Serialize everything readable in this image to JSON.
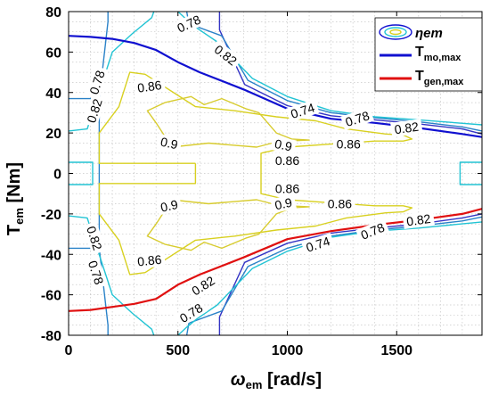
{
  "chart_data": {
    "type": "contour",
    "xlabel": {
      "main": "ω",
      "sub": "em",
      "rest": " [rad/s]"
    },
    "ylabel": {
      "main": "T",
      "sub": "em",
      "rest": " [Nm]"
    },
    "xlim": [
      0,
      1890
    ],
    "ylim": [
      -80,
      80
    ],
    "xticks": [
      "0",
      "500",
      "1000",
      "1500"
    ],
    "yticks": [
      "-80",
      "-60",
      "-40",
      "-20",
      "0",
      "20",
      "40",
      "60",
      "80"
    ],
    "grid": true,
    "legend": {
      "placement": "top-right",
      "entries": [
        {
          "main": "ηem",
          "sub": ""
        },
        {
          "main": "T",
          "sub": "mo,max"
        },
        {
          "main": "T",
          "sub": "gen,max"
        }
      ]
    },
    "colors": {
      "mo_max": "#1010d0",
      "gen_max": "#e01010",
      "c074": "#3434c4",
      "c078": "#2a82c8",
      "c082": "#22c4d4",
      "c086": "#d8d020",
      "c090": "#d8cc30"
    },
    "mo_max": [
      [
        0,
        68
      ],
      [
        100,
        67.5
      ],
      [
        200,
        66.5
      ],
      [
        300,
        64.5
      ],
      [
        400,
        61
      ],
      [
        500,
        55
      ],
      [
        600,
        50
      ],
      [
        800,
        41.5
      ],
      [
        1000,
        32
      ],
      [
        1200,
        27
      ],
      [
        1400,
        25
      ],
      [
        1600,
        22.5
      ],
      [
        1800,
        19.5
      ],
      [
        1890,
        18
      ]
    ],
    "gen_max": [
      [
        0,
        -68
      ],
      [
        100,
        -67.5
      ],
      [
        200,
        -66
      ],
      [
        300,
        -64.5
      ],
      [
        400,
        -62
      ],
      [
        500,
        -55
      ],
      [
        600,
        -50
      ],
      [
        800,
        -41.5
      ],
      [
        1000,
        -32.5
      ],
      [
        1200,
        -28.5
      ],
      [
        1400,
        -25.5
      ],
      [
        1600,
        -23
      ],
      [
        1800,
        -20
      ],
      [
        1890,
        -17.5
      ]
    ],
    "contours": [
      {
        "level": "0.74",
        "color_key": "c074",
        "points": [
          [
            690,
            80
          ],
          [
            690,
            71
          ],
          [
            805,
            44
          ],
          [
            1000,
            33.5
          ],
          [
            1200,
            28.5
          ],
          [
            1400,
            26.5
          ],
          [
            1600,
            24.5
          ],
          [
            1800,
            22
          ],
          [
            1890,
            19.5
          ]
        ]
      },
      {
        "level": "0.74",
        "color_key": "c074",
        "points": [
          [
            690,
            -80
          ],
          [
            690,
            -71
          ],
          [
            805,
            -44
          ],
          [
            1000,
            -34.5
          ],
          [
            1200,
            -29.5
          ],
          [
            1400,
            -27
          ],
          [
            1600,
            -25
          ],
          [
            1800,
            -22
          ],
          [
            1890,
            -20
          ]
        ]
      },
      {
        "level": "0.78",
        "color_key": "c078",
        "points": [
          [
            540,
            80
          ],
          [
            550,
            74
          ],
          [
            700,
            68
          ],
          [
            820,
            46
          ],
          [
            1000,
            36
          ],
          [
            1200,
            30
          ],
          [
            1400,
            27.5
          ],
          [
            1600,
            25.5
          ],
          [
            1800,
            23
          ],
          [
            1890,
            21
          ]
        ]
      },
      {
        "level": "0.78",
        "color_key": "c078",
        "points": [
          [
            540,
            -80
          ],
          [
            550,
            -74
          ],
          [
            700,
            -68
          ],
          [
            820,
            -46
          ],
          [
            1000,
            -37
          ],
          [
            1200,
            -31
          ],
          [
            1400,
            -28
          ],
          [
            1600,
            -26
          ],
          [
            1800,
            -23.5
          ],
          [
            1890,
            -21.5
          ]
        ]
      },
      {
        "level": "0.78",
        "color_key": "c078",
        "points": [
          [
            0,
            37
          ],
          [
            140,
            37
          ],
          [
            140,
            -37
          ],
          [
            0,
            -37
          ]
        ]
      },
      {
        "level": "0.78",
        "color_key": "c078",
        "points": [
          [
            140,
            37
          ],
          [
            180,
            75
          ],
          [
            180,
            80
          ]
        ]
      },
      {
        "level": "0.78",
        "color_key": "c078",
        "points": [
          [
            140,
            -37
          ],
          [
            180,
            -75
          ],
          [
            180,
            -80
          ]
        ]
      },
      {
        "level": "0.82",
        "color_key": "c082",
        "points": [
          [
            0,
            21
          ],
          [
            85,
            22
          ],
          [
            200,
            60
          ],
          [
            290,
            69
          ],
          [
            380,
            77
          ],
          [
            390,
            80
          ]
        ]
      },
      {
        "level": "0.82",
        "color_key": "c082",
        "points": [
          [
            0,
            -21
          ],
          [
            85,
            -22
          ],
          [
            200,
            -60
          ],
          [
            290,
            -69
          ],
          [
            380,
            -77
          ],
          [
            390,
            -80
          ]
        ]
      },
      {
        "level": "0.82",
        "color_key": "c082",
        "points": [
          [
            0,
            5.5
          ],
          [
            110,
            5.5
          ],
          [
            110,
            -5.5
          ],
          [
            0,
            -5.5
          ]
        ]
      },
      {
        "level": "0.82",
        "color_key": "c082",
        "points": [
          [
            1890,
            5.5
          ],
          [
            1790,
            5.5
          ],
          [
            1790,
            -5.5
          ],
          [
            1890,
            -5.5
          ]
        ]
      },
      {
        "level": "0.82",
        "color_key": "c082",
        "points": [
          [
            1890,
            24
          ],
          [
            1600,
            26.5
          ],
          [
            1400,
            28
          ],
          [
            1200,
            31
          ],
          [
            1000,
            38
          ],
          [
            840,
            47
          ],
          [
            680,
            65
          ],
          [
            585,
            72
          ],
          [
            540,
            76
          ],
          [
            500,
            80
          ]
        ]
      },
      {
        "level": "0.82",
        "color_key": "c082",
        "points": [
          [
            1890,
            -24
          ],
          [
            1600,
            -27
          ],
          [
            1400,
            -28.5
          ],
          [
            1200,
            -31.5
          ],
          [
            1000,
            -38.5
          ],
          [
            840,
            -47
          ],
          [
            680,
            -65
          ],
          [
            585,
            -72
          ],
          [
            540,
            -76
          ],
          [
            500,
            -80
          ]
        ]
      },
      {
        "level": "0.86",
        "color_key": "c086",
        "points": [
          [
            580,
            5
          ],
          [
            580,
            -5
          ],
          [
            140,
            -5
          ],
          [
            140,
            -20
          ],
          [
            230,
            -33
          ],
          [
            280,
            -50
          ],
          [
            350,
            -49
          ],
          [
            580,
            -33
          ],
          [
            760,
            -31
          ],
          [
            950,
            -28
          ],
          [
            1130,
            -26
          ],
          [
            1270,
            -22
          ],
          [
            1450,
            -19.5
          ],
          [
            1530,
            -19
          ],
          [
            1570,
            -17
          ],
          [
            1530,
            -16
          ],
          [
            1400,
            -16
          ],
          [
            1200,
            -14.5
          ],
          [
            1000,
            -13
          ],
          [
            880,
            -10
          ],
          [
            880,
            -5
          ],
          [
            880,
            5
          ],
          [
            880,
            10
          ],
          [
            1000,
            13
          ],
          [
            1200,
            14.5
          ],
          [
            1400,
            16
          ],
          [
            1530,
            16
          ],
          [
            1570,
            17
          ],
          [
            1530,
            19
          ],
          [
            1450,
            19.5
          ],
          [
            1270,
            22
          ],
          [
            1130,
            26
          ],
          [
            950,
            28
          ],
          [
            760,
            31
          ],
          [
            580,
            33
          ],
          [
            350,
            49
          ],
          [
            280,
            50
          ],
          [
            230,
            33
          ],
          [
            140,
            20
          ],
          [
            140,
            5
          ],
          [
            580,
            5
          ]
        ]
      },
      {
        "level": "0.9",
        "color_key": "c090",
        "points": [
          [
            470,
            13
          ],
          [
            640,
            15
          ],
          [
            860,
            13
          ],
          [
            930,
            15
          ],
          [
            1000,
            16
          ],
          [
            1100,
            16.5
          ],
          [
            1020,
            17
          ],
          [
            950,
            20
          ],
          [
            870,
            30
          ],
          [
            810,
            32
          ],
          [
            700,
            37
          ],
          [
            620,
            34
          ],
          [
            560,
            38
          ],
          [
            440,
            35
          ],
          [
            360,
            31
          ],
          [
            400,
            25
          ],
          [
            430,
            20
          ],
          [
            460,
            15
          ],
          [
            470,
            13
          ]
        ]
      },
      {
        "level": "0.9",
        "color_key": "c090",
        "points": [
          [
            470,
            -13
          ],
          [
            640,
            -15
          ],
          [
            860,
            -13
          ],
          [
            930,
            -15
          ],
          [
            1000,
            -16
          ],
          [
            1100,
            -16.5
          ],
          [
            1020,
            -17
          ],
          [
            950,
            -20
          ],
          [
            870,
            -30
          ],
          [
            810,
            -32
          ],
          [
            700,
            -37
          ],
          [
            620,
            -34
          ],
          [
            560,
            -38
          ],
          [
            440,
            -35
          ],
          [
            360,
            -31
          ],
          [
            400,
            -25
          ],
          [
            430,
            -20
          ],
          [
            460,
            -15
          ],
          [
            470,
            -13
          ]
        ]
      }
    ],
    "contour_labels": [
      {
        "text": "0.78",
        "x": 550,
        "y": 74,
        "angle": -25
      },
      {
        "text": "0.82",
        "x": 718,
        "y": 58.5,
        "angle": 38
      },
      {
        "text": "0.78",
        "x": 130,
        "y": 45,
        "angle": -72
      },
      {
        "text": "0.82",
        "x": 118,
        "y": 31,
        "angle": -72
      },
      {
        "text": "0.86",
        "x": 370,
        "y": 43,
        "angle": -8
      },
      {
        "text": "0.9",
        "x": 460,
        "y": 15,
        "angle": 12
      },
      {
        "text": "0.9",
        "x": 982,
        "y": 14,
        "angle": 12
      },
      {
        "text": "0.86",
        "x": 1280,
        "y": 14.5,
        "angle": 0
      },
      {
        "text": "0.86",
        "x": 1000,
        "y": 6.5,
        "angle": 0
      },
      {
        "text": "0.86",
        "x": 1000,
        "y": -7.5,
        "angle": 0
      },
      {
        "text": "0.86",
        "x": 1240,
        "y": -15,
        "angle": 0
      },
      {
        "text": "0.9",
        "x": 460,
        "y": -16,
        "angle": -12
      },
      {
        "text": "0.9",
        "x": 982,
        "y": -15,
        "angle": -12
      },
      {
        "text": "0.74",
        "x": 1070,
        "y": 31,
        "angle": -18
      },
      {
        "text": "0.78",
        "x": 1320,
        "y": 27,
        "angle": -18
      },
      {
        "text": "0.82",
        "x": 1545,
        "y": 22.5,
        "angle": -8
      },
      {
        "text": "0.74",
        "x": 1140,
        "y": -35,
        "angle": -18
      },
      {
        "text": "0.78",
        "x": 1390,
        "y": -28.5,
        "angle": -22
      },
      {
        "text": "0.82",
        "x": 1600,
        "y": -23,
        "angle": -8
      },
      {
        "text": "0.86",
        "x": 370,
        "y": -43,
        "angle": -6
      },
      {
        "text": "0.82",
        "x": 118,
        "y": -32,
        "angle": 72
      },
      {
        "text": "0.78",
        "x": 125,
        "y": -49,
        "angle": 72
      },
      {
        "text": "0.82",
        "x": 615,
        "y": -55.5,
        "angle": -32
      },
      {
        "text": "0.78",
        "x": 560,
        "y": -69,
        "angle": -32
      }
    ]
  }
}
